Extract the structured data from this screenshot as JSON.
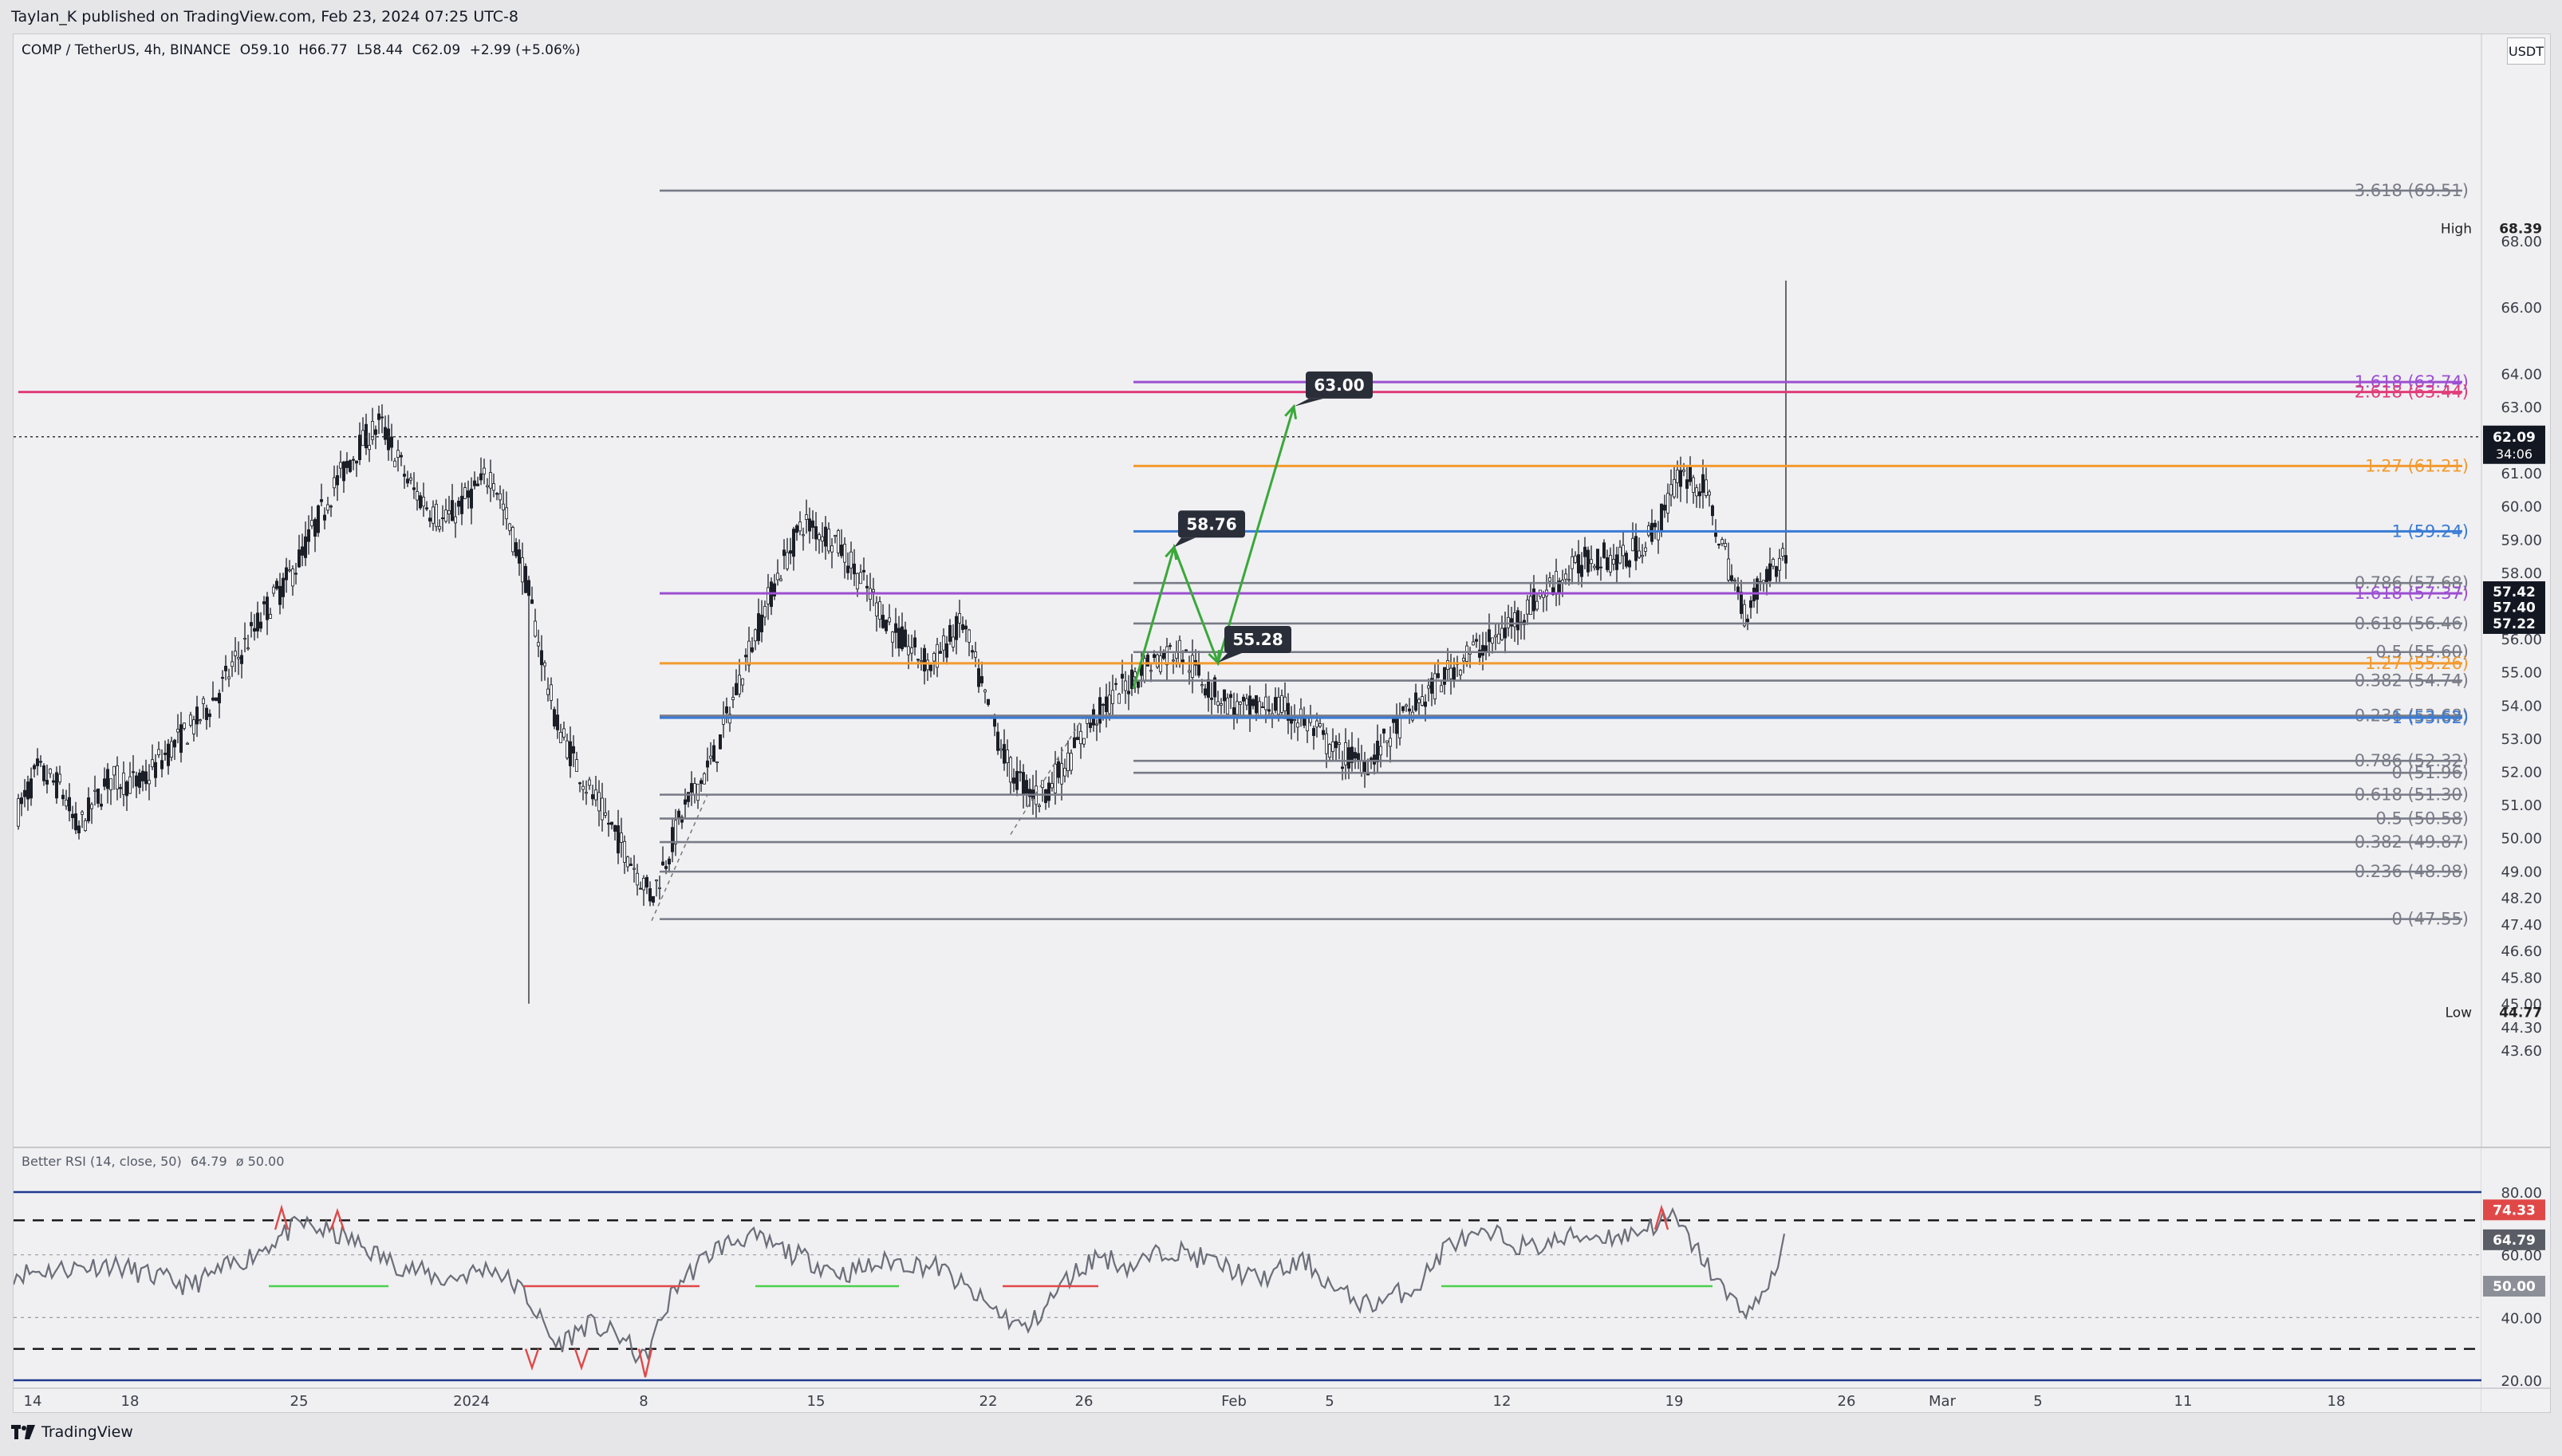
{
  "header": {
    "publish_text": "Taylan_K published on TradingView.com, Feb 23, 2024 07:25 UTC-8"
  },
  "legend": {
    "symbol": "COMP / TetherUS, 4h, BINANCE",
    "open": "O59.10",
    "high": "H66.77",
    "low": "L58.44",
    "close": "C62.09",
    "change": "+2.99 (+5.06%)"
  },
  "currency_label": "USDT",
  "price_axis": {
    "ticks": [
      "68.00",
      "66.00",
      "64.00",
      "63.00",
      "61.00",
      "60.00",
      "59.00",
      "58.00",
      "56.00",
      "55.00",
      "54.00",
      "53.00",
      "52.00",
      "51.00",
      "50.00",
      "49.00",
      "48.20",
      "47.40",
      "46.60",
      "45.80",
      "45.00",
      "44.30",
      "43.60"
    ],
    "high_label": "High",
    "high_value": "68.39",
    "low_label": "Low",
    "low_value": "44.77",
    "last_price": "62.09",
    "countdown": "34:06",
    "tag_1": "57.42",
    "tag_2": "57.40",
    "tag_3": "57.22"
  },
  "fib_levels": [
    {
      "label": "3.618 (69.51)",
      "color": "#787b86"
    },
    {
      "label": "1.618 (63.74)",
      "color": "#9c4fd1"
    },
    {
      "label": "2.618 (63.44)",
      "color": "#e03c78"
    },
    {
      "label": "1.27 (61.21)",
      "color": "#f29a2e"
    },
    {
      "label": "1 (59.24)",
      "color": "#3a7bd5"
    },
    {
      "label": "0.786 (57.68)",
      "color": "#787b86"
    },
    {
      "label": "1.618 (57.37)",
      "color": "#9c4fd1"
    },
    {
      "label": "0.618 (56.46)",
      "color": "#787b86"
    },
    {
      "label": "0.5 (55.60)",
      "color": "#787b86"
    },
    {
      "label": "1.27 (55.26)",
      "color": "#f29a2e"
    },
    {
      "label": "0.382 (54.74)",
      "color": "#787b86"
    },
    {
      "label": "0.236 (53.68)",
      "color": "#787b86"
    },
    {
      "label": "1 (53.62)",
      "color": "#3a7bd5"
    },
    {
      "label": "0.786 (52.32)",
      "color": "#787b86"
    },
    {
      "label": "0 (51.96)",
      "color": "#787b86"
    },
    {
      "label": "0.618 (51.30)",
      "color": "#787b86"
    },
    {
      "label": "0.5 (50.58)",
      "color": "#787b86"
    },
    {
      "label": "0.382 (49.87)",
      "color": "#787b86"
    },
    {
      "label": "0.236 (48.98)",
      "color": "#787b86"
    },
    {
      "label": "0 (47.55)",
      "color": "#787b86"
    }
  ],
  "projection_labels": [
    "58.76",
    "55.28",
    "63.00"
  ],
  "rsi": {
    "legend_name": "Better RSI (14, close, 50)",
    "legend_value": "64.79",
    "legend_extra": "ø 50.00",
    "ticks": [
      "80.00",
      "60.00",
      "40.00",
      "20.00"
    ],
    "tag_top": "74.33",
    "tag_value": "64.79",
    "tag_mid": "50.00"
  },
  "time_axis": [
    "14",
    "18",
    "25",
    "2024",
    "8",
    "15",
    "22",
    "26",
    "Feb",
    "5",
    "12",
    "19",
    "26",
    "Mar",
    "5",
    "11",
    "18"
  ],
  "footer": {
    "brand": "TradingView"
  },
  "colors": {
    "candle": "#1b1e26",
    "fib_gray": "#787b86",
    "projection": "#3aa83a",
    "label_bg": "#2a2e39",
    "rsi_line": "#6b6e78",
    "rsi_border": "#1f3a8f",
    "rsi_green": "#4bd04b",
    "rsi_red": "#e04848"
  }
}
